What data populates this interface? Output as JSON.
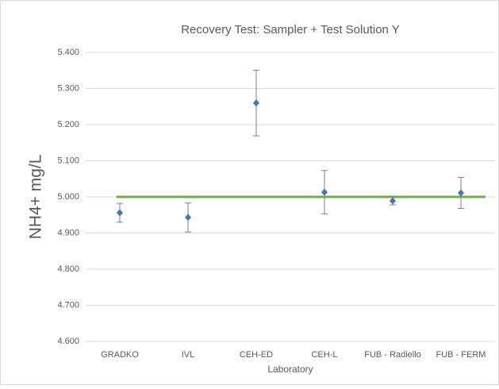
{
  "chart_data": {
    "type": "errorscatter",
    "title": "Recovery Test: Sampler + Test Solution Y",
    "x_label": "Laboratory",
    "y_label": "NH4+ mg/L",
    "categories": [
      "GRADKO",
      "IVL",
      "CEH-ED",
      "CEH-L",
      "FUB - Radiello",
      "FUB - FERM"
    ],
    "values": [
      4.956,
      4.943,
      5.26,
      5.013,
      4.989,
      5.011
    ],
    "errors": [
      0.026,
      0.04,
      0.091,
      0.06,
      0.011,
      0.043
    ],
    "color": "#4472c4",
    "error_color": "#7f7f7f",
    "reference_line": {
      "value": 5,
      "color": "#70ad47"
    },
    "ylim": [
      4.6,
      5.4
    ],
    "yticks": [
      {
        "value": 4.6,
        "label": "4.600"
      },
      {
        "value": 4.7,
        "label": "4.700"
      },
      {
        "value": 4.8,
        "label": "4.800"
      },
      {
        "value": 4.9,
        "label": "4.900"
      },
      {
        "value": 5,
        "label": "5.000"
      },
      {
        "value": 5.1,
        "label": "5.100"
      },
      {
        "value": 5.2,
        "label": "5.200"
      },
      {
        "value": 5.3,
        "label": "5.300"
      },
      {
        "value": 5.4,
        "label": "5.400"
      }
    ],
    "grid": true
  }
}
